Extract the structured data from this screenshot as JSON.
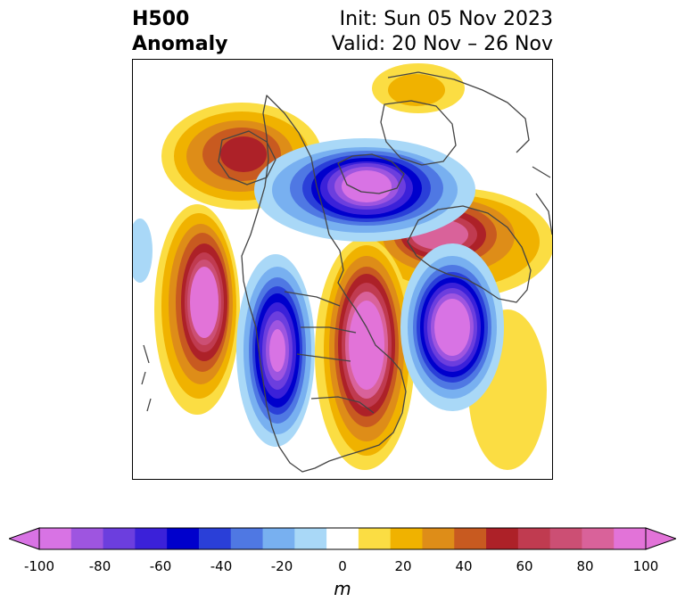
{
  "header": {
    "title_line1": "H500",
    "title_line2": "Anomaly",
    "init": "Init: Sun 05 Nov 2023",
    "valid": "Valid: 20 Nov – 26 Nov"
  },
  "colorbar": {
    "unit": "m",
    "ticks": [
      "-100",
      "-80",
      "-60",
      "-40",
      "-20",
      "0",
      "20",
      "40",
      "60",
      "80",
      "100"
    ],
    "levels": [
      -100,
      -90,
      -80,
      -70,
      -60,
      -50,
      -40,
      -30,
      -20,
      -10,
      10,
      20,
      30,
      40,
      50,
      60,
      70,
      80,
      90,
      100
    ],
    "colors": [
      "#d873e4",
      "#9e55e0",
      "#6c3ede",
      "#3b21d9",
      "#0000cc",
      "#2a3fd8",
      "#4f78e3",
      "#78b0f0",
      "#a9d8f7",
      "#ffffff",
      "#fbdd43",
      "#f0b200",
      "#de8d18",
      "#c85a20",
      "#ad2128",
      "#c03b50",
      "#cc4f74",
      "#d9629a",
      "#e273d8"
    ]
  },
  "map": {
    "colors": {
      "low_core": "#d873e4",
      "low_inner": "#6c3ede",
      "low_mid": "#0000cc",
      "low_outer": "#4f78e3",
      "low_edge": "#a9d8f7",
      "high_edge": "#fbdd43",
      "high_outer": "#f0b200",
      "high_mid": "#de8d18",
      "high_inner": "#ad2128",
      "high_core": "#e273d8",
      "coastline": "#444444"
    }
  }
}
